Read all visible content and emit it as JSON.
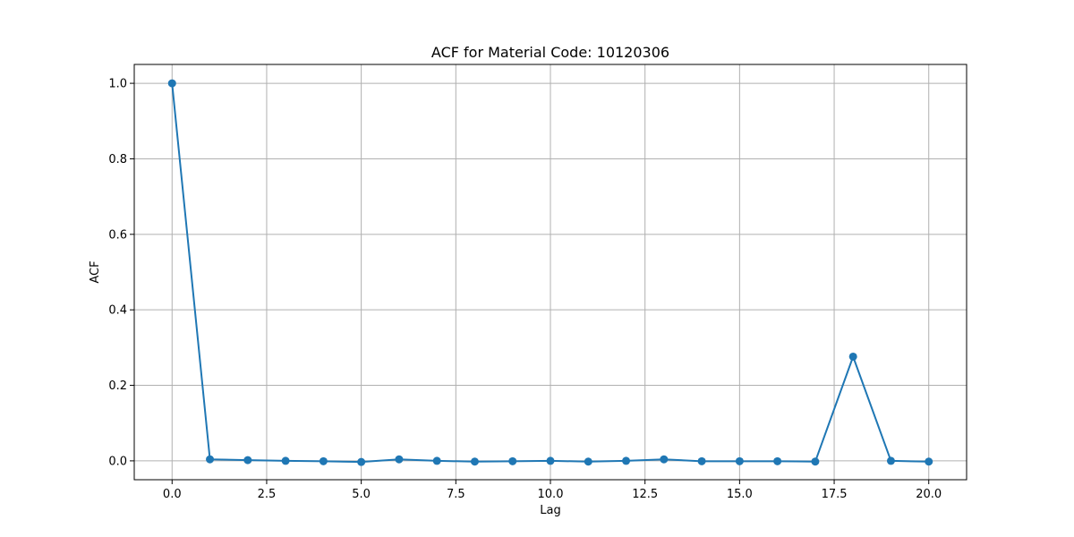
{
  "chart_data": {
    "type": "line",
    "title": "ACF for Material Code: 10120306",
    "xlabel": "Lag",
    "ylabel": "ACF",
    "xlim": [
      -1.0,
      21.0
    ],
    "ylim": [
      -0.05,
      1.05
    ],
    "grid": true,
    "marker": "circle",
    "x_ticks": [
      0.0,
      2.5,
      5.0,
      7.5,
      10.0,
      12.5,
      15.0,
      17.5,
      20.0
    ],
    "x_tick_labels": [
      "0.0",
      "2.5",
      "5.0",
      "7.5",
      "10.0",
      "12.5",
      "15.0",
      "17.5",
      "20.0"
    ],
    "y_ticks": [
      0.0,
      0.2,
      0.4,
      0.6,
      0.8,
      1.0
    ],
    "y_tick_labels": [
      "0.0",
      "0.2",
      "0.4",
      "0.6",
      "0.8",
      "1.0"
    ],
    "series": [
      {
        "color": "#1f77b4",
        "x": [
          0,
          1,
          2,
          3,
          4,
          5,
          6,
          7,
          8,
          9,
          10,
          11,
          12,
          13,
          14,
          15,
          16,
          17,
          18,
          19,
          20
        ],
        "values": [
          1.0,
          0.004,
          0.002,
          0.0,
          -0.001,
          -0.003,
          0.004,
          0.0,
          -0.002,
          -0.001,
          0.0,
          -0.002,
          0.0,
          0.004,
          -0.001,
          -0.001,
          -0.001,
          -0.002,
          0.276,
          0.0,
          -0.002
        ]
      }
    ]
  }
}
